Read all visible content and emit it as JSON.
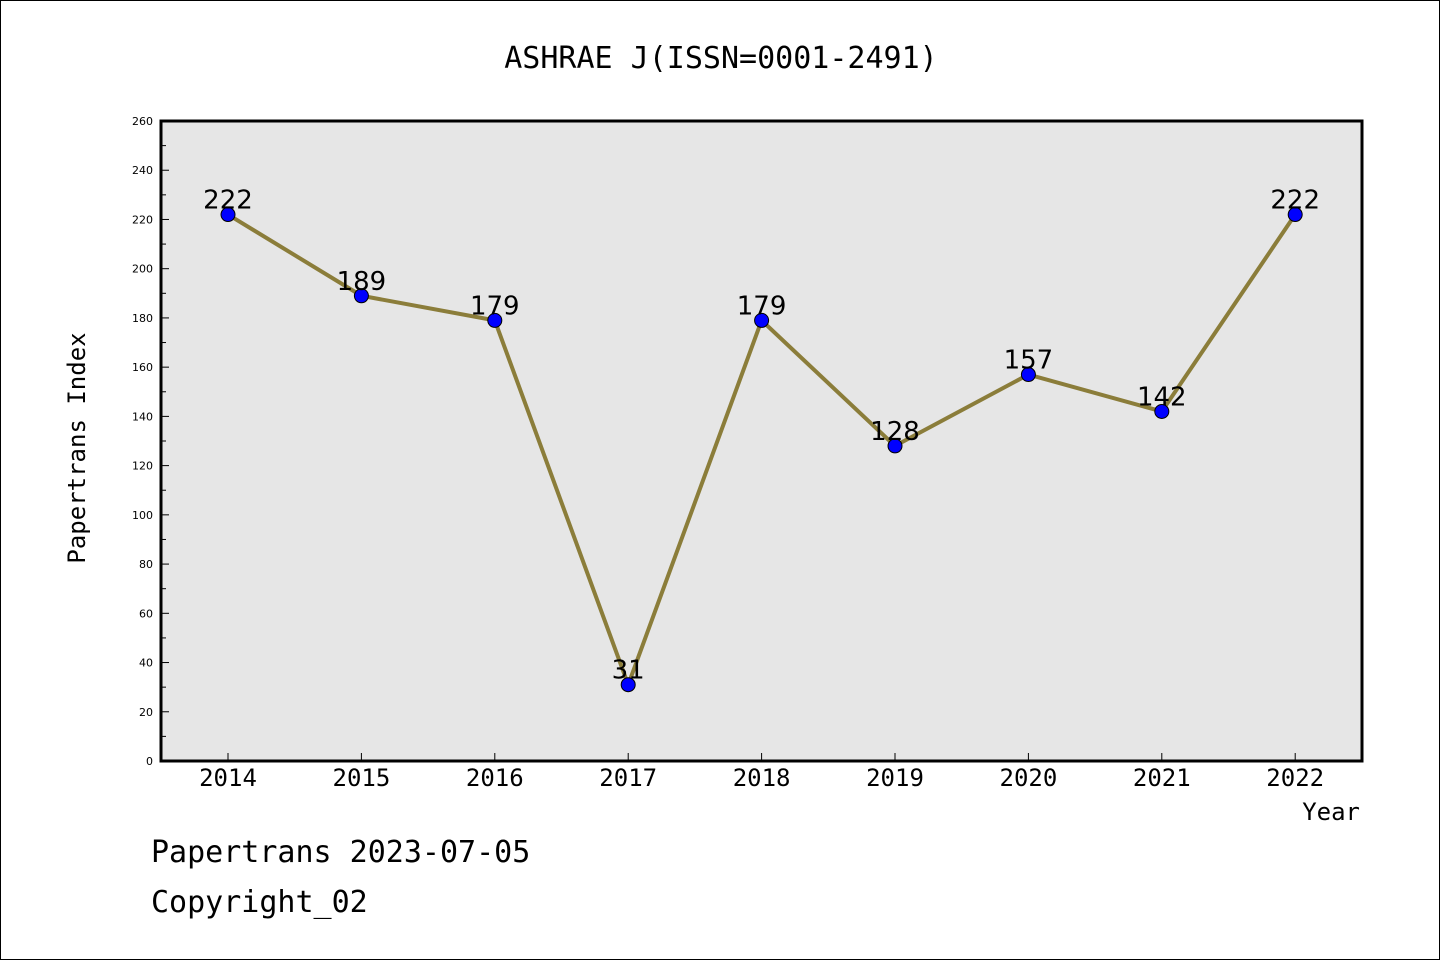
{
  "footer": {
    "line1": "Papertrans 2023-07-05",
    "line2": "Copyright_02"
  },
  "chart_data": {
    "type": "line",
    "title": "ASHRAE J(ISSN=0001-2491)",
    "xlabel": "Year",
    "ylabel": "Papertrans Index",
    "categories": [
      "2014",
      "2015",
      "2016",
      "2017",
      "2018",
      "2019",
      "2020",
      "2021",
      "2022"
    ],
    "series": [
      {
        "values": [
          222,
          189,
          179,
          31,
          179,
          128,
          157,
          142,
          222
        ]
      }
    ],
    "ylim": [
      0,
      260
    ],
    "yticks": [
      0,
      20,
      40,
      60,
      80,
      100,
      120,
      140,
      160,
      180,
      200,
      220,
      240,
      260
    ],
    "grid": false,
    "legend": "none",
    "colors": {
      "plot_background": "#e6e6e6",
      "line": "#8b7d3a",
      "marker": "#0000ff"
    }
  }
}
